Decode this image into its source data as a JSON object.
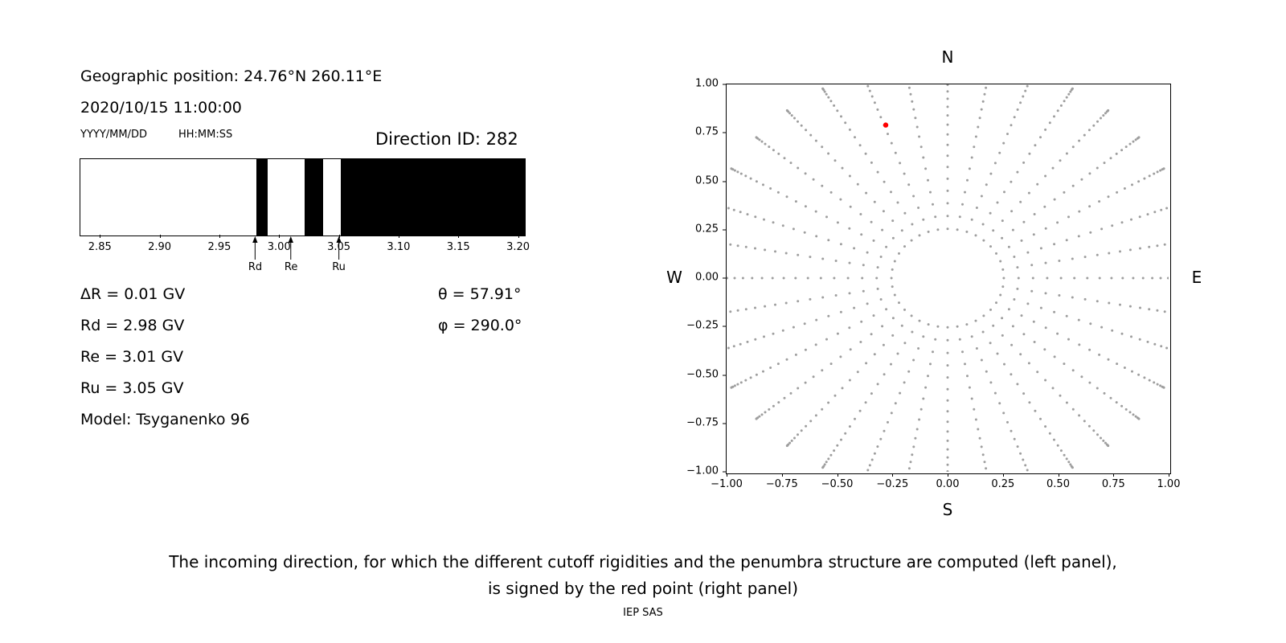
{
  "header": {
    "geo_position": "Geographic position: 24.76°N 260.11°E",
    "datetime": "2020/10/15 11:00:00",
    "date_format_label": "YYYY/MM/DD",
    "time_format_label": "HH:MM:SS",
    "direction_id_label": "Direction ID: 282"
  },
  "cutoff_info": {
    "delta_r": "ΔR = 0.01 GV",
    "rd": "Rd = 2.98 GV",
    "re": "Re = 3.01 GV",
    "ru": "Ru = 3.05 GV",
    "model": "Model: Tsyganenko 96",
    "theta": "θ = 57.91°",
    "phi": "φ = 290.0°"
  },
  "caption": {
    "line1": "The incoming direction, for which the different cutoff rigidities and the penumbra structure are computed (left panel),",
    "line2": "is signed by the red point (right panel)",
    "credit": "IEP SAS"
  },
  "chart_data": [
    {
      "type": "bar",
      "name": "penumbra-structure",
      "xlim": [
        2.833,
        3.205
      ],
      "xticks": [
        2.85,
        2.9,
        2.95,
        3.0,
        3.05,
        3.1,
        3.15,
        3.2
      ],
      "xtick_labels": [
        "2.85",
        "2.90",
        "2.95",
        "3.00",
        "3.05",
        "3.10",
        "3.15",
        "3.20"
      ],
      "black_intervals_gv": [
        [
          2.98,
          2.99
        ],
        [
          3.021,
          3.036
        ],
        [
          3.051,
          3.205
        ]
      ],
      "bar_color": "#000000",
      "background_color": "#ffffff",
      "markers": [
        {
          "label": "Rd",
          "x": 2.98
        },
        {
          "label": "Re",
          "x": 3.01
        },
        {
          "label": "Ru",
          "x": 3.05
        }
      ]
    },
    {
      "type": "scatter",
      "name": "incoming-direction-map",
      "xlim": [
        -1,
        1
      ],
      "ylim": [
        -1,
        1
      ],
      "xticks": [
        -1,
        -0.75,
        -0.5,
        -0.25,
        0,
        0.25,
        0.5,
        0.75,
        1
      ],
      "xtick_labels": [
        "−1.00",
        "−0.75",
        "−0.50",
        "−0.25",
        "0.00",
        "0.25",
        "0.50",
        "0.75",
        "1.00"
      ],
      "yticks": [
        1,
        0.75,
        0.5,
        0.25,
        0,
        -0.25,
        -0.5,
        -0.75,
        -1
      ],
      "ytick_labels": [
        "1.00",
        "0.75",
        "0.50",
        "0.25",
        "0.00",
        "−0.25",
        "−0.50",
        "−0.75",
        "−1.00"
      ],
      "compass": {
        "top": "N",
        "bottom": "S",
        "left": "W",
        "right": "E"
      },
      "grid_pattern": {
        "azimuth_start_deg": 0,
        "azimuth_step_deg": 10,
        "azimuth_count": 36,
        "zenith_start_deg": 13,
        "zenith_end_deg": 90,
        "zenith_step_deg": 3.5,
        "radius_scale": 1.13,
        "dot_color": "#9e9e9e",
        "dot_radius_px": 1.5
      },
      "red_point": {
        "x": -0.28,
        "y": 0.79,
        "color": "#ff0000",
        "theta_deg": 57.91,
        "phi_deg": 290.0
      }
    }
  ]
}
